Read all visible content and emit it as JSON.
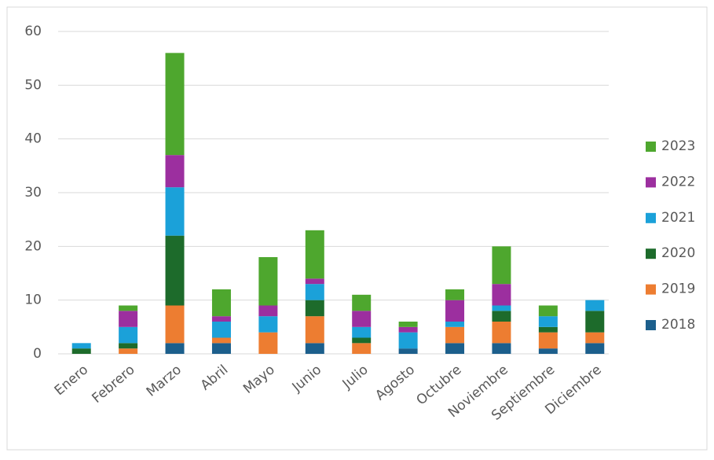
{
  "chart_data": {
    "type": "stacked_bar",
    "categories": [
      "Enero",
      "Febrero",
      "Marzo",
      "Abril",
      "Mayo",
      "Junio",
      "Julio",
      "Agosto",
      "Octubre",
      "Noviembre",
      "Septiembre",
      "Diciembre"
    ],
    "series": [
      {
        "name": "2018",
        "color": "#1c5f8c",
        "values": [
          0,
          0,
          2,
          2,
          0,
          2,
          0,
          1,
          2,
          2,
          1,
          2
        ]
      },
      {
        "name": "2019",
        "color": "#ed7d31",
        "values": [
          0,
          1,
          7,
          1,
          4,
          5,
          2,
          0,
          3,
          4,
          3,
          2
        ]
      },
      {
        "name": "2020",
        "color": "#1d6b2b",
        "values": [
          1,
          1,
          13,
          0,
          0,
          3,
          1,
          0,
          0,
          2,
          1,
          4
        ]
      },
      {
        "name": "2021",
        "color": "#1ba1d9",
        "values": [
          1,
          3,
          9,
          3,
          3,
          3,
          2,
          3,
          1,
          1,
          2,
          2
        ]
      },
      {
        "name": "2022",
        "color": "#9c2f9f",
        "values": [
          0,
          3,
          6,
          1,
          2,
          1,
          3,
          1,
          4,
          4,
          0,
          0
        ]
      },
      {
        "name": "2023",
        "color": "#4ea72e",
        "values": [
          0,
          1,
          19,
          5,
          9,
          9,
          3,
          1,
          2,
          7,
          2,
          0
        ]
      }
    ],
    "ylim": [
      0,
      60
    ],
    "yticks": [
      0,
      10,
      20,
      30,
      40,
      50,
      60
    ],
    "grid": true,
    "legend": "right"
  }
}
